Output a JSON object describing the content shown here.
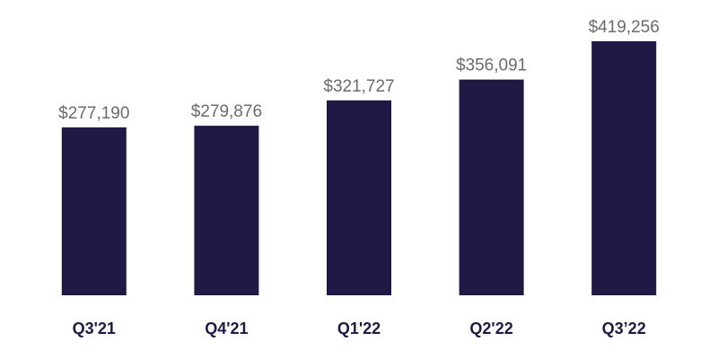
{
  "chart_data": {
    "type": "bar",
    "categories": [
      "Q3'21",
      "Q4'21",
      "Q1'22",
      "Q2'22",
      "Q3’22"
    ],
    "values": [
      277190,
      279876,
      321727,
      356091,
      419256
    ],
    "value_labels": [
      "$277,190",
      "$279,876",
      "$321,727",
      "$356,091",
      "$419,256"
    ],
    "color": "#211945"
  }
}
